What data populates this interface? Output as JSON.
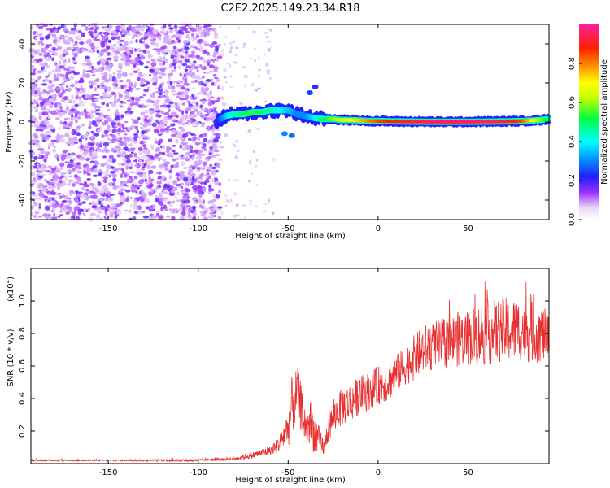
{
  "page": {
    "title": "C2E2.2025.149.23.34.R18"
  },
  "chart_data": [
    {
      "type": "heatmap",
      "title": "C2E2.2025.149.23.34.R18",
      "xlabel": "Height of straight line (km)",
      "ylabel": "Frequency (Hz)",
      "xlim": [
        -193,
        95
      ],
      "ylim": [
        -50,
        50
      ],
      "xticks": [
        -150,
        -100,
        -50,
        0,
        50
      ],
      "yticks": [
        -40,
        -20,
        0,
        20,
        40
      ],
      "colorbar": {
        "label": "Normalized spectral amplitude",
        "range": [
          0,
          1
        ],
        "ticks": [
          0.0,
          0.2,
          0.4,
          0.6,
          0.8
        ],
        "tick_labels": [
          "0.0",
          "0.2",
          "0.4",
          "0.6",
          "0.8"
        ],
        "colormap": "rainbow (white-violet-blue-cyan-green-yellow-red-magenta)"
      },
      "ridge": {
        "x": [
          -90,
          -85,
          -80,
          -75,
          -70,
          -65,
          -60,
          -55,
          -50,
          -45,
          -40,
          -35,
          -30,
          -25,
          -20,
          -15,
          -10,
          -5,
          0,
          10,
          20,
          30,
          40,
          50,
          60,
          70,
          80,
          90,
          95
        ],
        "y": [
          0,
          3,
          4,
          4,
          5,
          5,
          6,
          6,
          6,
          4,
          3,
          2,
          1.5,
          1.5,
          1,
          1,
          0.8,
          0.5,
          0.5,
          0.3,
          0.2,
          0.1,
          0.1,
          0.1,
          0.2,
          0.3,
          0.5,
          1,
          1.5
        ],
        "amplitude": [
          0.2,
          0.35,
          0.45,
          0.5,
          0.55,
          0.5,
          0.45,
          0.4,
          0.35,
          0.3,
          0.3,
          0.4,
          0.5,
          0.6,
          0.65,
          0.7,
          0.75,
          0.8,
          0.85,
          0.9,
          0.92,
          0.95,
          0.95,
          0.95,
          0.95,
          0.92,
          0.85,
          0.6,
          0.45
        ]
      },
      "grid": false
    },
    {
      "type": "line",
      "title": "",
      "xlabel": "Height of straight line (km)",
      "ylabel": "SNR (10 * v/v)",
      "y_multiplier_label": "(x10",
      "y_multiplier_exp": "4",
      "y_multiplier_close": ")",
      "xlim": [
        -193,
        95
      ],
      "ylim": [
        0,
        1.2
      ],
      "xticks": [
        -150,
        -100,
        -50,
        0,
        50
      ],
      "yticks": [
        0.2,
        0.4,
        0.6,
        0.8,
        1.0
      ],
      "ytick_labels": [
        "0.2",
        "0.4",
        "0.6",
        "0.8",
        "1.0"
      ],
      "series": [
        {
          "name": "",
          "color": "#e83030",
          "envelope": {
            "x": [
              -193,
              -150,
              -100,
              -80,
              -70,
              -60,
              -55,
              -50,
              -48,
              -45,
              -42,
              -40,
              -38,
              -35,
              -32,
              -30,
              -28,
              -25,
              -20,
              -15,
              -10,
              -5,
              0,
              5,
              10,
              15,
              20,
              25,
              30,
              40,
              50,
              60,
              70,
              80,
              90,
              95
            ],
            "y": [
              0.02,
              0.02,
              0.02,
              0.03,
              0.05,
              0.08,
              0.12,
              0.22,
              0.35,
              0.42,
              0.32,
              0.2,
              0.25,
              0.18,
              0.12,
              0.1,
              0.2,
              0.28,
              0.35,
              0.38,
              0.42,
              0.45,
              0.48,
              0.5,
              0.55,
              0.6,
              0.65,
              0.7,
              0.72,
              0.75,
              0.78,
              0.8,
              0.82,
              0.82,
              0.8,
              0.78
            ]
          },
          "noise_amplitude": [
            0.005,
            0.005,
            0.008,
            0.01,
            0.02,
            0.03,
            0.05,
            0.12,
            0.18,
            0.18,
            0.14,
            0.12,
            0.15,
            0.12,
            0.08,
            0.05,
            0.08,
            0.1,
            0.12,
            0.12,
            0.12,
            0.12,
            0.12,
            0.12,
            0.12,
            0.12,
            0.14,
            0.15,
            0.15,
            0.16,
            0.18,
            0.2,
            0.2,
            0.2,
            0.18,
            0.15
          ]
        }
      ],
      "grid": false
    }
  ]
}
